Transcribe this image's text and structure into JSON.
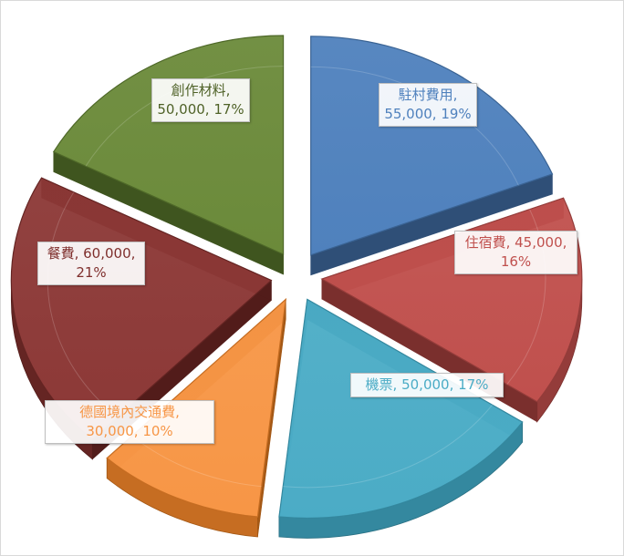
{
  "chart_data": {
    "type": "pie",
    "style": "3d-exploded",
    "title": "",
    "legend": "none",
    "slices": [
      {
        "name": "駐村費用",
        "value": 55000,
        "percent": "19%",
        "label_lines": [
          "駐村費用,",
          "55,000, 19%"
        ],
        "color": "#4f81bd",
        "side": "#3a6393",
        "dark": "#2f4f77",
        "text_color": "#4f81bd"
      },
      {
        "name": "住宿費",
        "value": 45000,
        "percent": "16%",
        "label_lines": [
          "住宿費, 45,000,",
          "16%"
        ],
        "color": "#c0504d",
        "side": "#943c3a",
        "dark": "#7a2f2d",
        "text_color": "#c0504d"
      },
      {
        "name": "機票",
        "value": 50000,
        "percent": "17%",
        "label_lines": [
          "機票, 50,000, 17%"
        ],
        "color": "#4bacc6",
        "side": "#34889f",
        "dark": "#2a7083",
        "text_color": "#4bacc6"
      },
      {
        "name": "德國境內交通費",
        "value": 30000,
        "percent": "10%",
        "label_lines": [
          "德國境內交通費,",
          "30,000, 10%"
        ],
        "color": "#f79646",
        "side": "#c66d22",
        "dark": "#a45815",
        "text_color": "#f79646"
      },
      {
        "name": "餐費",
        "value": 60000,
        "percent": "21%",
        "label_lines": [
          "餐費, 60,000,",
          "21%"
        ],
        "color": "#8c3836",
        "side": "#652523",
        "dark": "#521c1a",
        "text_color": "#7f2f2d"
      },
      {
        "name": "創作材料",
        "value": 50000,
        "percent": "17%",
        "label_lines": [
          "創作材料,",
          "50,000, 17%"
        ],
        "color": "#6b8a3a",
        "side": "#4e6828",
        "dark": "#3f551f",
        "text_color": "#4f6228"
      }
    ]
  }
}
